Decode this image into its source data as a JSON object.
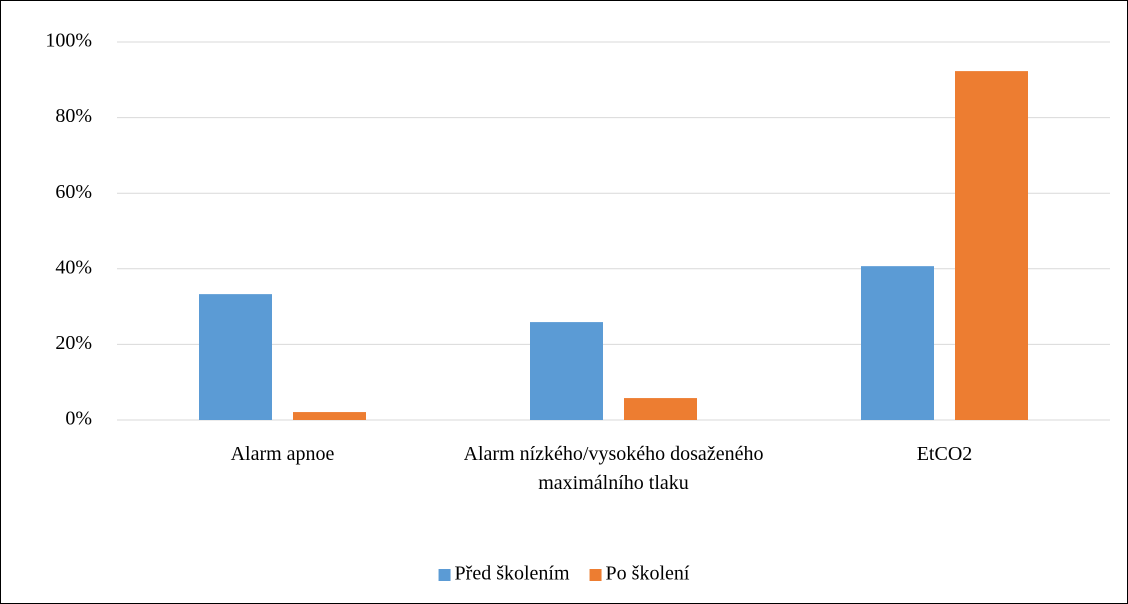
{
  "chart_data": {
    "type": "bar",
    "categories": [
      "Alarm apnoe",
      "Alarm nízkého/vysokého dosaženého maximálního tlaku",
      "EtCO2"
    ],
    "series": [
      {
        "name": "Před školením",
        "color": "#5b9bd5",
        "values": [
          33.3,
          25.9,
          40.7
        ]
      },
      {
        "name": "Po školení",
        "color": "#ed7d31",
        "values": [
          2.1,
          5.8,
          92.3
        ]
      }
    ],
    "ylim": [
      0,
      100
    ],
    "yticks": [
      {
        "value": 0,
        "label": "0%"
      },
      {
        "value": 20,
        "label": "20%"
      },
      {
        "value": 40,
        "label": "40%"
      },
      {
        "value": 60,
        "label": "60%"
      },
      {
        "value": 80,
        "label": "80%"
      },
      {
        "value": 100,
        "label": "100%"
      }
    ],
    "grid": true,
    "legend": "bottom"
  }
}
